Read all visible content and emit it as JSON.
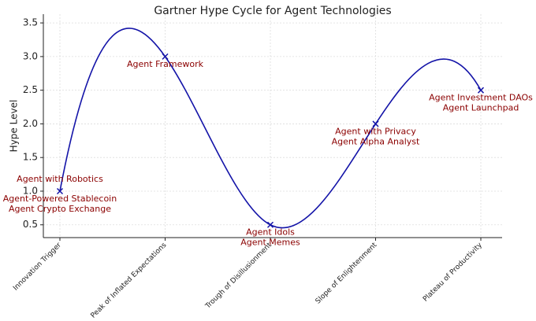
{
  "chart_data": {
    "type": "line",
    "title": "Gartner Hype Cycle for Agent Technologies",
    "y_label": "Hype Level",
    "categories": [
      "Innovation Trigger",
      "Peak of Inflated Expectations",
      "Trough of Disillusionment",
      "Slope of Enlightenment",
      "Plateau of Productivity"
    ],
    "values": [
      1.0,
      3.0,
      0.5,
      2.0,
      2.5
    ],
    "color": "#1414a8",
    "label_color": "#8b0000",
    "smooth": true,
    "grid": true,
    "ylim": [
      0.31,
      3.63
    ],
    "yticks": [
      0.5,
      {
        "value": 1,
        "label": "1.0"
      },
      1.5,
      {
        "value": 2,
        "label": "2.0"
      },
      2.5,
      {
        "value": 3,
        "label": "3.0"
      },
      3.5
    ],
    "annotations": [
      [
        "Agent with Robotics",
        "Agent-Powered Stablecoin",
        "Agent Crypto Exchange"
      ],
      [
        "Agent Framework"
      ],
      [
        "Agent Idols",
        "Agent Memes"
      ],
      [
        "Agent with Privacy",
        "Agent Alpha Analyst"
      ],
      [
        "Agent Investment DAOs",
        "Agent Launchpad"
      ]
    ]
  }
}
